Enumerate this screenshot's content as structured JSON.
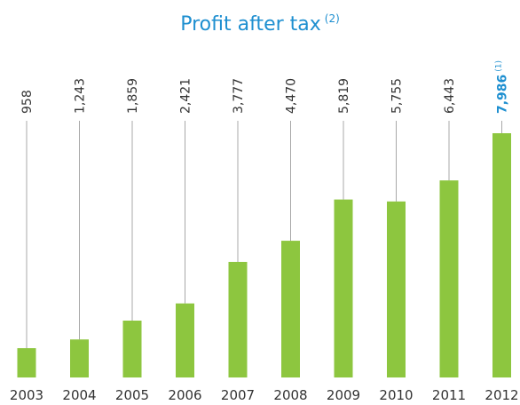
{
  "chart_data": {
    "type": "bar",
    "title": "Profit after tax",
    "title_note": "(2)",
    "categories": [
      "2003",
      "2004",
      "2005",
      "2006",
      "2007",
      "2008",
      "2009",
      "2010",
      "2011",
      "2012"
    ],
    "values": [
      958,
      1243,
      1859,
      2421,
      3777,
      4470,
      5819,
      5755,
      6443,
      7986
    ],
    "value_labels": [
      "958",
      "1,243",
      "1,859",
      "2,421",
      "3,777",
      "4,470",
      "5,819",
      "5,755",
      "6,443",
      "7,986"
    ],
    "color": "#8dc63f",
    "title_color": "#1e8fd0",
    "connector_color": "#a8a8a8",
    "highlight": {
      "index": 9,
      "color": "#1e8fd0",
      "note": "(1)"
    }
  }
}
